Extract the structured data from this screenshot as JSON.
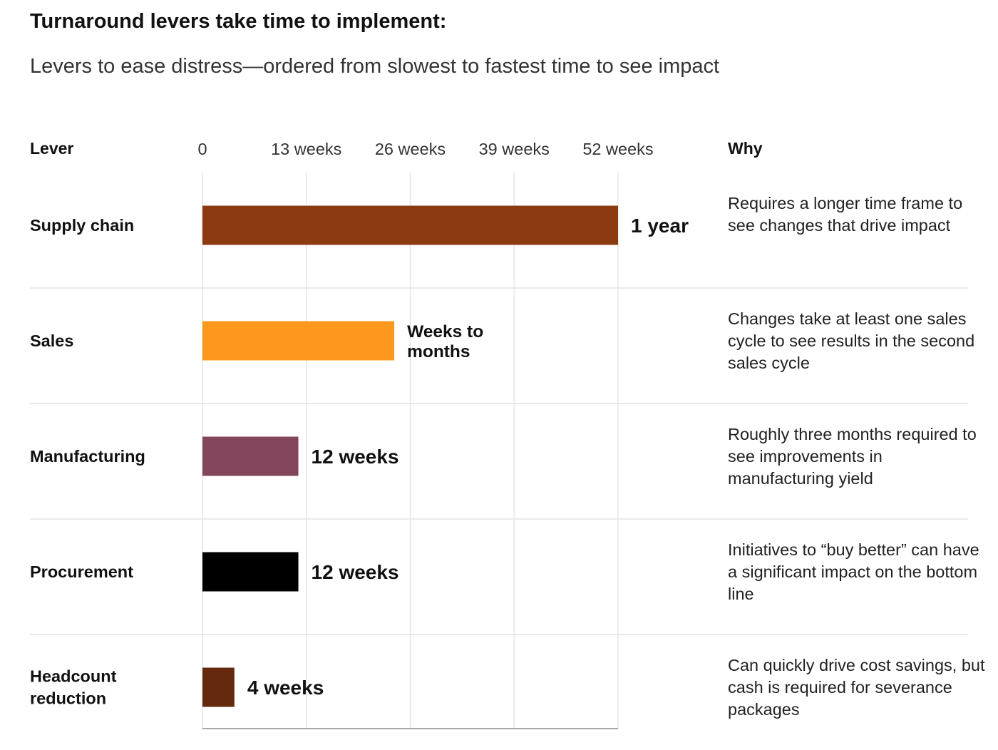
{
  "title": "Turnaround levers take time to implement:",
  "subtitle": "Levers to ease distress—ordered from slowest to fastest time to see impact",
  "columns": {
    "lever": "Lever",
    "why": "Why"
  },
  "chart_data": {
    "type": "bar",
    "orientation": "horizontal",
    "x_ticks": [
      {
        "value": 0,
        "label": "0"
      },
      {
        "value": 13,
        "label": "13 weeks"
      },
      {
        "value": 26,
        "label": "26 weeks"
      },
      {
        "value": 39,
        "label": "39 weeks"
      },
      {
        "value": 52,
        "label": "52 weeks"
      }
    ],
    "xlim": [
      0,
      52
    ],
    "grid": true,
    "bars": [
      {
        "category": "Supply chain",
        "value": 52,
        "label": "1 year",
        "color": "#8B3A12",
        "why": "Requires a longer time frame to see changes that drive impact"
      },
      {
        "category": "Sales",
        "value": 24,
        "label": "Weeks to months",
        "color": "#FD981F",
        "why": "Changes take at least one sales cycle to see results in the second sales cycle"
      },
      {
        "category": "Manufacturing",
        "value": 12,
        "label": "12 weeks",
        "color": "#82455B",
        "why": "Roughly three months required to see improvements in manufacturing yield"
      },
      {
        "category": "Procurement",
        "value": 12,
        "label": "12 weeks",
        "color": "#000000",
        "why": "Initiatives to “buy better” can have a significant impact on the bottom line"
      },
      {
        "category": "Headcount reduction",
        "value": 4,
        "label": "4 weeks",
        "color": "#652A0E",
        "why": "Can quickly drive cost savings, but cash is required for severance packages"
      }
    ]
  }
}
